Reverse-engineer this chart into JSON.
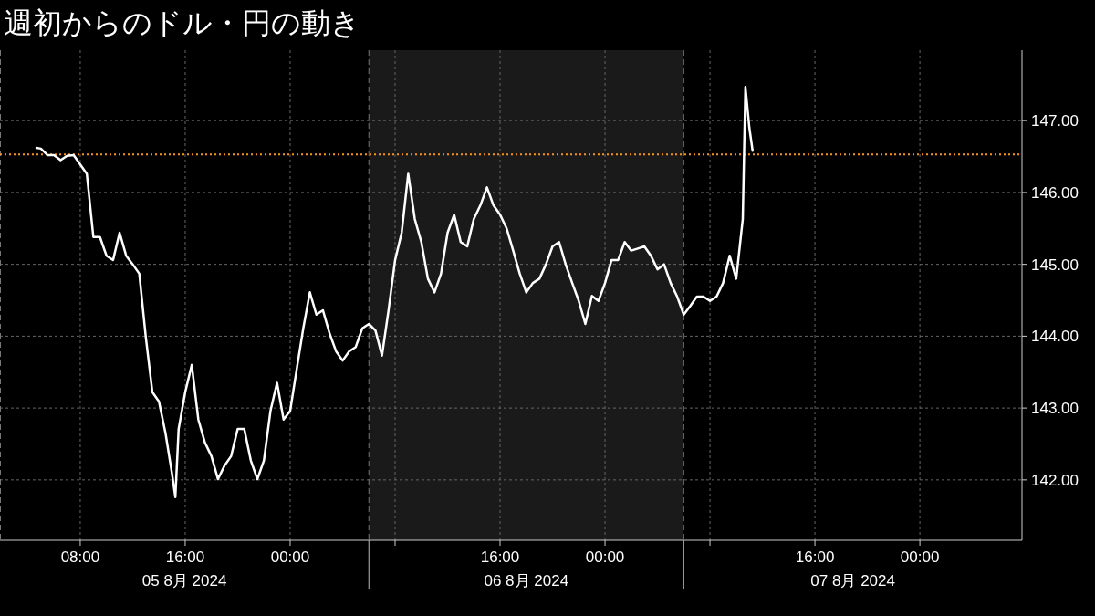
{
  "chart_data": {
    "type": "line",
    "title": "週初からのドル・円の動き",
    "x": [
      "2024-08-05T04:40",
      "2024-08-05T05:00",
      "2024-08-05T05:30",
      "2024-08-05T06:00",
      "2024-08-05T06:30",
      "2024-08-05T07:00",
      "2024-08-05T07:30",
      "2024-08-05T08:00",
      "2024-08-05T08:30",
      "2024-08-05T09:00",
      "2024-08-05T09:30",
      "2024-08-05T10:00",
      "2024-08-05T10:30",
      "2024-08-05T11:00",
      "2024-08-05T11:30",
      "2024-08-05T12:00",
      "2024-08-05T12:30",
      "2024-08-05T13:00",
      "2024-08-05T13:30",
      "2024-08-05T14:00",
      "2024-08-05T14:30",
      "2024-08-05T15:00",
      "2024-08-05T15:15",
      "2024-08-05T15:30",
      "2024-08-05T16:00",
      "2024-08-05T16:30",
      "2024-08-05T17:00",
      "2024-08-05T17:30",
      "2024-08-05T18:00",
      "2024-08-05T18:30",
      "2024-08-05T19:00",
      "2024-08-05T19:30",
      "2024-08-05T20:00",
      "2024-08-05T20:30",
      "2024-08-05T21:00",
      "2024-08-05T21:30",
      "2024-08-05T22:00",
      "2024-08-05T22:30",
      "2024-08-05T23:00",
      "2024-08-05T23:30",
      "2024-08-06T00:00",
      "2024-08-06T00:30",
      "2024-08-06T01:00",
      "2024-08-06T01:30",
      "2024-08-06T02:00",
      "2024-08-06T02:30",
      "2024-08-06T03:00",
      "2024-08-06T03:30",
      "2024-08-06T04:00",
      "2024-08-06T04:30",
      "2024-08-06T05:00",
      "2024-08-06T05:30",
      "2024-08-06T06:00",
      "2024-08-06T06:30",
      "2024-08-06T07:00",
      "2024-08-06T07:30",
      "2024-08-06T08:00",
      "2024-08-06T08:30",
      "2024-08-06T09:00",
      "2024-08-06T09:30",
      "2024-08-06T10:00",
      "2024-08-06T10:30",
      "2024-08-06T11:00",
      "2024-08-06T11:30",
      "2024-08-06T12:00",
      "2024-08-06T12:30",
      "2024-08-06T13:00",
      "2024-08-06T13:30",
      "2024-08-06T14:00",
      "2024-08-06T14:30",
      "2024-08-06T15:00",
      "2024-08-06T15:30",
      "2024-08-06T16:00",
      "2024-08-06T16:30",
      "2024-08-06T17:00",
      "2024-08-06T17:30",
      "2024-08-06T18:00",
      "2024-08-06T18:30",
      "2024-08-06T19:00",
      "2024-08-06T19:30",
      "2024-08-06T20:00",
      "2024-08-06T20:30",
      "2024-08-06T21:00",
      "2024-08-06T21:30",
      "2024-08-06T22:00",
      "2024-08-06T22:30",
      "2024-08-06T23:00",
      "2024-08-06T23:30",
      "2024-08-07T00:00",
      "2024-08-07T00:30",
      "2024-08-07T01:00",
      "2024-08-07T01:30",
      "2024-08-07T02:00",
      "2024-08-07T02:30",
      "2024-08-07T03:00",
      "2024-08-07T03:30",
      "2024-08-07T04:00",
      "2024-08-07T04:30",
      "2024-08-07T05:00",
      "2024-08-07T05:30",
      "2024-08-07T06:00",
      "2024-08-07T06:30",
      "2024-08-07T07:00",
      "2024-08-07T07:30",
      "2024-08-07T08:00",
      "2024-08-07T08:30",
      "2024-08-07T09:00",
      "2024-08-07T09:30",
      "2024-08-07T10:00",
      "2024-08-07T10:30",
      "2024-08-07T10:42",
      "2024-08-07T11:00",
      "2024-08-07T11:15"
    ],
    "series": [
      {
        "color": "#ffffff",
        "values": [
          146.62,
          146.61,
          146.52,
          146.52,
          146.45,
          146.51,
          146.52,
          146.39,
          146.26,
          145.38,
          145.38,
          145.12,
          145.06,
          145.44,
          145.12,
          145.0,
          144.87,
          143.98,
          143.22,
          143.09,
          142.65,
          142.08,
          141.76,
          142.71,
          143.22,
          143.6,
          142.84,
          142.52,
          142.33,
          142.01,
          142.2,
          142.33,
          142.71,
          142.71,
          142.27,
          142.01,
          142.27,
          142.96,
          143.35,
          142.84,
          142.96,
          143.54,
          144.11,
          144.61,
          144.3,
          144.36,
          144.04,
          143.79,
          143.66,
          143.79,
          143.85,
          144.11,
          144.17,
          144.08,
          143.73,
          144.36,
          145.06,
          145.44,
          146.26,
          145.63,
          145.31,
          144.8,
          144.61,
          144.87,
          145.44,
          145.69,
          145.31,
          145.25,
          145.63,
          145.82,
          146.07,
          145.82,
          145.69,
          145.5,
          145.19,
          144.87,
          144.61,
          144.74,
          144.8,
          145.0,
          145.25,
          145.31,
          145.0,
          144.74,
          144.49,
          144.17,
          144.56,
          144.49,
          144.74,
          145.06,
          145.06,
          145.31,
          145.19,
          145.22,
          145.25,
          145.12,
          144.93,
          145.0,
          144.74,
          144.55,
          144.3,
          144.42,
          144.55,
          144.55,
          144.49,
          144.55,
          144.74,
          145.12,
          144.8,
          145.63,
          147.47,
          146.9,
          146.58
        ]
      }
    ],
    "xlim": [
      "2024-08-05T01:53",
      "2024-08-08T07:47"
    ],
    "xticks": [
      {
        "value": "2024-08-05T08:00",
        "label": "08:00"
      },
      {
        "value": "2024-08-05T16:00",
        "label": "16:00"
      },
      {
        "value": "2024-08-06T00:00",
        "label": "00:00"
      },
      {
        "value": "2024-08-06T08:00",
        "label": null
      },
      {
        "value": "2024-08-06T16:00",
        "label": "16:00"
      },
      {
        "value": "2024-08-07T00:00",
        "label": "00:00"
      },
      {
        "value": "2024-08-07T08:00",
        "label": null
      },
      {
        "value": "2024-08-07T16:00",
        "label": "16:00"
      },
      {
        "value": "2024-08-08T00:00",
        "label": "00:00"
      }
    ],
    "ylim": [
      141.16,
      147.98
    ],
    "yticks": [
      {
        "value": 142,
        "label": "142.00"
      },
      {
        "value": 143,
        "label": "143.00"
      },
      {
        "value": 144,
        "label": "144.00"
      },
      {
        "value": 145,
        "label": "145.00"
      },
      {
        "value": 146,
        "label": "146.00"
      },
      {
        "value": 147,
        "label": "147.00"
      }
    ],
    "grid": true,
    "ref_lines": [
      {
        "axis": "y",
        "value": 146.53,
        "color": "#f7931e",
        "line_style": "dotted"
      },
      {
        "axis": "x",
        "value": "2024-08-06T06:00",
        "color": "#777777",
        "line_style": "dashed"
      },
      {
        "axis": "x",
        "value": "2024-08-07T06:00",
        "color": "#777777",
        "line_style": "dashed"
      }
    ],
    "bands": [
      {
        "axis": "x",
        "from": "2024-08-06T06:00",
        "to": "2024-08-07T06:00",
        "color": "#1a1a1a"
      }
    ],
    "annotations": [
      "05 8月 2024",
      "06 8月 2024",
      "07 8月 2024"
    ]
  }
}
